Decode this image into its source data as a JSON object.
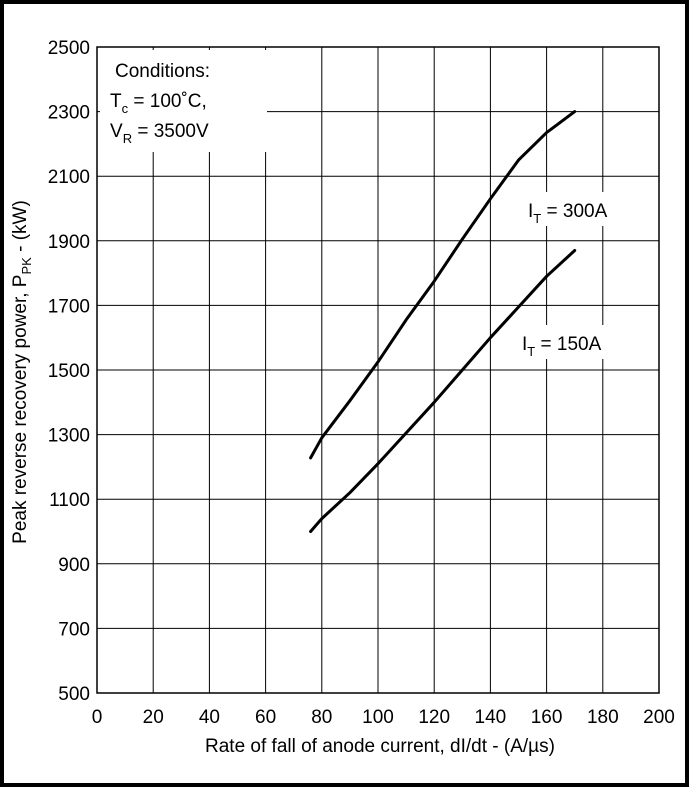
{
  "chart_data": {
    "type": "line",
    "title": "",
    "xlabel": "Rate of fall of anode current, dI/dt - (A/µs)",
    "ylabel": {
      "main": "Peak reverse recovery power, P",
      "sub": "PK",
      "unit": " - (kW)"
    },
    "xlim": [
      0,
      200
    ],
    "ylim": [
      500,
      2500
    ],
    "xticks": [
      "0",
      "20",
      "40",
      "60",
      "80",
      "100",
      "120",
      "140",
      "160",
      "180",
      "200"
    ],
    "yticks": [
      "500",
      "700",
      "900",
      "1100",
      "1300",
      "1500",
      "1700",
      "1900",
      "2100",
      "2300",
      "2500"
    ],
    "grid": true,
    "conditions": {
      "heading": "Conditions:",
      "line1": {
        "main": "T",
        "sub": "c",
        "rest": " = 100˚C,"
      },
      "line2": {
        "main": "V",
        "sub": "R",
        "rest": " = 3500V"
      }
    },
    "series": [
      {
        "name": {
          "main": "I",
          "sub": "T",
          "rest": " = 300A"
        },
        "x": [
          76,
          80,
          90,
          100,
          110,
          120,
          130,
          140,
          150,
          160,
          170
        ],
        "y": [
          1228,
          1290,
          1405,
          1525,
          1655,
          1775,
          1905,
          2030,
          2150,
          2235,
          2300
        ]
      },
      {
        "name": {
          "main": "I",
          "sub": "T",
          "rest": " = 150A"
        },
        "x": [
          76,
          80,
          90,
          100,
          110,
          120,
          130,
          140,
          150,
          160,
          170
        ],
        "y": [
          1000,
          1040,
          1120,
          1210,
          1305,
          1400,
          1500,
          1600,
          1695,
          1790,
          1870
        ]
      }
    ]
  }
}
